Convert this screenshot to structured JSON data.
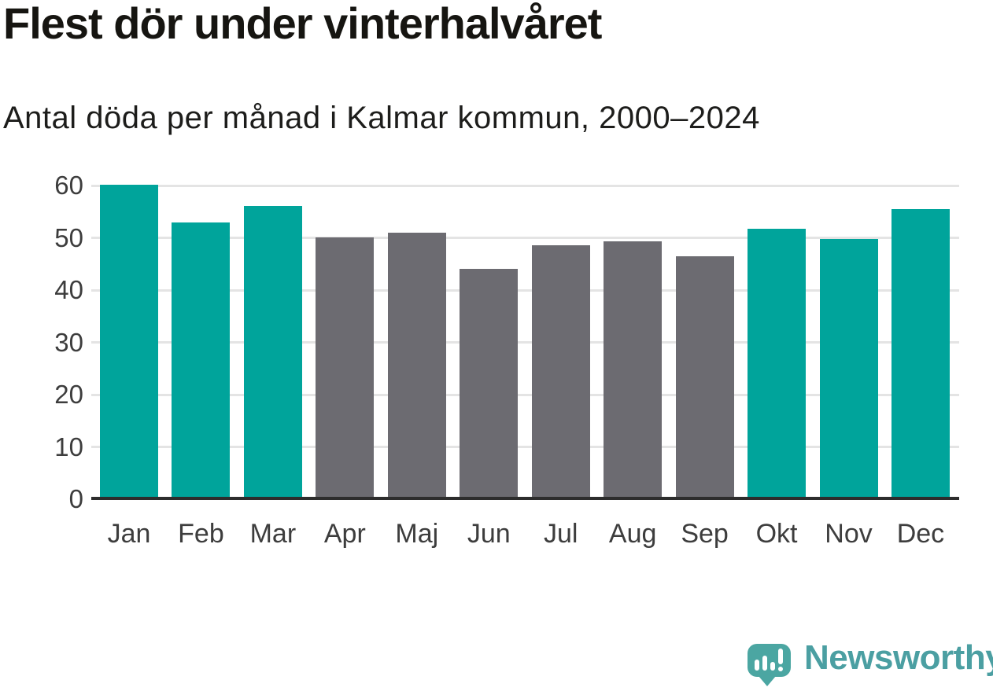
{
  "header": {
    "title": "Flest dör under vinterhalvåret",
    "subtitle": "Antal döda per månad i Kalmar kommun, 2000–2024"
  },
  "chart_data": {
    "type": "bar",
    "title": "Flest dör under vinterhalvåret",
    "subtitle": "Antal döda per månad i Kalmar kommun, 2000–2024",
    "categories": [
      "Jan",
      "Feb",
      "Mar",
      "Apr",
      "Maj",
      "Jun",
      "Jul",
      "Aug",
      "Sep",
      "Okt",
      "Nov",
      "Dec"
    ],
    "values": [
      60.1,
      53.0,
      56.1,
      50.1,
      51.0,
      44.1,
      48.5,
      49.3,
      46.4,
      51.8,
      49.7,
      55.5
    ],
    "bar_colors": [
      "#00a49b",
      "#00a49b",
      "#00a49b",
      "#6c6b71",
      "#6c6b71",
      "#6c6b71",
      "#6c6b71",
      "#6c6b71",
      "#6c6b71",
      "#00a49b",
      "#00a49b",
      "#00a49b"
    ],
    "highlighted_months": [
      "Jan",
      "Feb",
      "Mar",
      "Okt",
      "Nov",
      "Dec"
    ],
    "highlight_color": "#00a49b",
    "other_color": "#6c6b71",
    "xlabel": "",
    "ylabel": "",
    "ylim": [
      0,
      60
    ],
    "yticks": [
      0,
      10,
      20,
      30,
      40,
      50,
      60
    ],
    "grid": true,
    "legend": false,
    "gridline_color": "#e4e4e4",
    "axis_color": "#2d2d2d"
  },
  "footer": {
    "brand": "Newsworthy",
    "logo_icon": "newsworthy-bubble-barchart-icon",
    "brand_text_color": "#4b9fa2",
    "logo_mark_color": "#4ba6a2"
  }
}
